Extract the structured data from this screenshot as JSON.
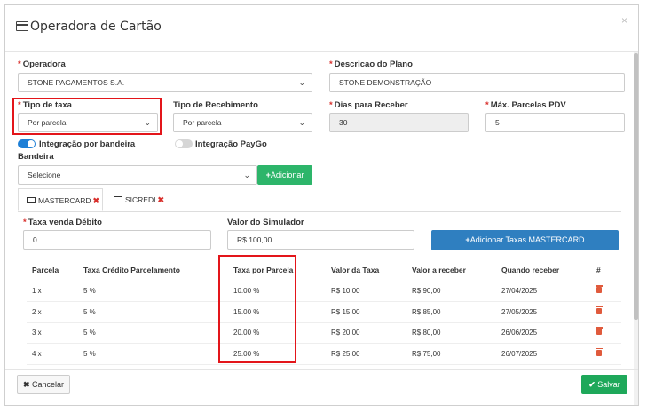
{
  "modal": {
    "title": "Operadora de Cartão",
    "close_glyph": "×",
    "title_icon": "credit-card-icon"
  },
  "form": {
    "operadora": {
      "label": "Operadora",
      "value": "STONE PAGAMENTOS S.A."
    },
    "descricao_plano": {
      "label": "Descricao do Plano",
      "value": "STONE DEMONSTRAÇÃO"
    },
    "tipo_taxa": {
      "label": "Tipo de taxa",
      "value": "Por parcela"
    },
    "tipo_recebimento": {
      "label": "Tipo de Recebimento",
      "value": "Por parcela"
    },
    "dias_receber": {
      "label": "Dias para Receber",
      "value": "30"
    },
    "max_parcelas": {
      "label": "Máx. Parcelas PDV",
      "value": "5"
    },
    "integracao_bandeira": {
      "label": "Integração por bandeira",
      "on": true
    },
    "integracao_paygo": {
      "label": "Integração PayGo",
      "on": false
    },
    "bandeira": {
      "label": "Bandeira",
      "value": "Selecione",
      "add_label": "Adicionar"
    },
    "required_mark": "*"
  },
  "tabs": [
    {
      "label": "MASTERCARD",
      "active": true,
      "remove_glyph": "✖"
    },
    {
      "label": "SICREDI",
      "active": false,
      "remove_glyph": "✖"
    }
  ],
  "tab_panel": {
    "taxa_debito": {
      "label": "Taxa venda Débito",
      "value": "0"
    },
    "valor_simulador": {
      "label": "Valor do Simulador",
      "value": "R$ 100,00"
    },
    "add_taxas_button": "Adicionar Taxas MASTERCARD"
  },
  "table": {
    "headers": [
      "Parcela",
      "Taxa Crédito Parcelamento",
      "Taxa por Parcela",
      "Valor da Taxa",
      "Valor a receber",
      "Quando receber",
      "#"
    ],
    "rows": [
      [
        "1 x",
        "5 %",
        "10.00 %",
        "R$ 10,00",
        "R$ 90,00",
        "27/04/2025"
      ],
      [
        "2 x",
        "5 %",
        "15.00 %",
        "R$ 15,00",
        "R$ 85,00",
        "27/05/2025"
      ],
      [
        "3 x",
        "5 %",
        "20.00 %",
        "R$ 20,00",
        "R$ 80,00",
        "26/06/2025"
      ],
      [
        "4 x",
        "5 %",
        "25.00 %",
        "R$ 25,00",
        "R$ 75,00",
        "26/07/2025"
      ]
    ]
  },
  "footer": {
    "cancel_label": "Cancelar",
    "save_label": "Salvar"
  },
  "colors": {
    "required": "#d9302c",
    "highlight": "#e3151a",
    "green": "#2db56a",
    "blue": "#2f7fc0",
    "toggle_on": "#1d7fd6"
  }
}
